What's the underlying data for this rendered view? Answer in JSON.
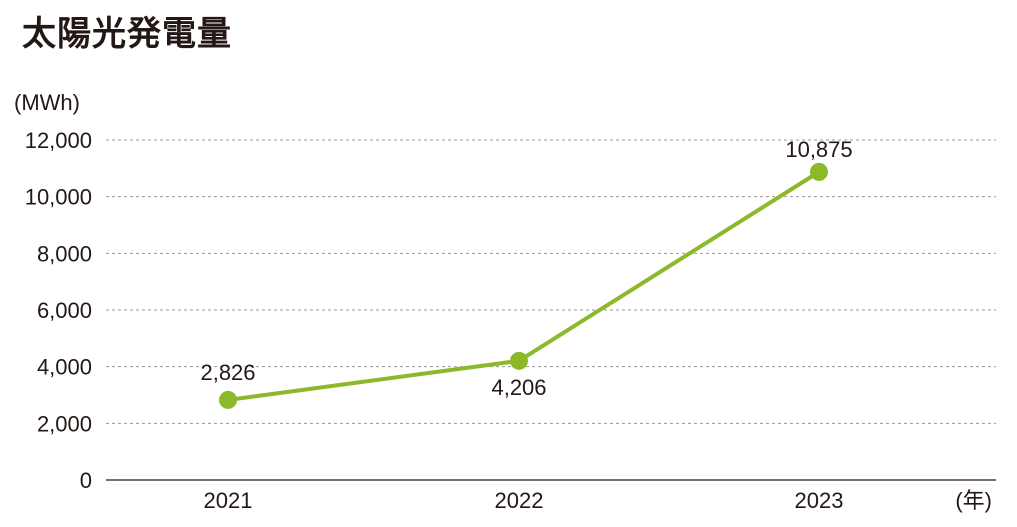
{
  "chart_data": {
    "type": "line",
    "title": "太陽光発電量",
    "ylabel": "(MWh)",
    "xlabel": "(年)",
    "categories": [
      "2021",
      "2022",
      "2023"
    ],
    "series": [
      {
        "values": [
          2826,
          4206,
          10875
        ],
        "value_labels": [
          "2,826",
          "4,206",
          "10,875"
        ],
        "color": "#8cb92a"
      }
    ],
    "ylim": [
      0,
      12000
    ],
    "yticks": [
      0,
      2000,
      4000,
      6000,
      8000,
      10000,
      12000
    ],
    "ytick_labels": [
      "0",
      "2,000",
      "4,000",
      "6,000",
      "8,000",
      "10,000",
      "12,000"
    ],
    "grid": true,
    "grid_style": "dashed",
    "legend": "none"
  }
}
